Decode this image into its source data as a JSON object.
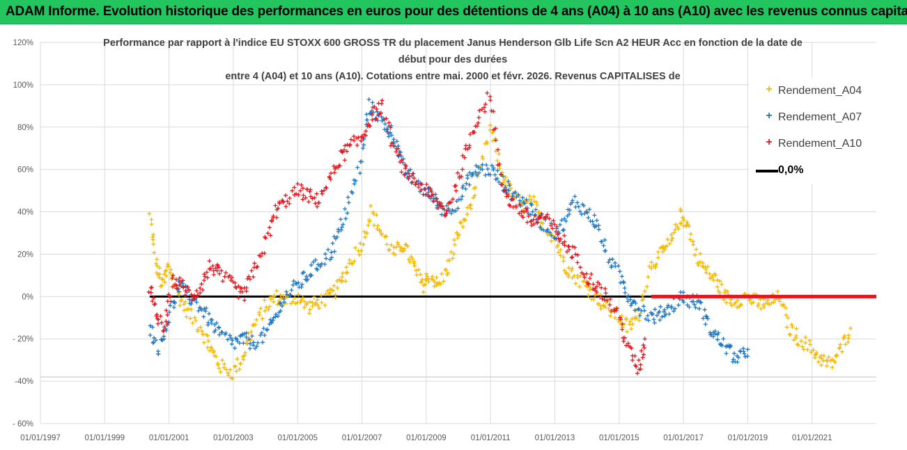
{
  "banner": {
    "text": "ADAM Informe. Evolution historique des performances en euros pour des détentions de 4 ans (A04) à 10 ans (A10) avec les revenus connus capitalisés",
    "color": "#22c55e"
  },
  "chart_data": {
    "type": "scatter",
    "title_lines": [
      "Performance par rapport à l'indice EU STOXX 600 GROSS TR  du placement Janus Henderson Glb Life Scn A2 HEUR Acc en fonction de la date de",
      "début pour des durées",
      "entre 4 (A04) et 10 ans (A10). Cotations entre mai. 2000 et févr. 2026. Revenus CAPITALISES de"
    ],
    "xlabel": "",
    "ylabel": "",
    "x_range": [
      "1997-01-01",
      "2022-12-31"
    ],
    "ylim": [
      -60,
      120
    ],
    "y_ticks": [
      120,
      100,
      80,
      60,
      40,
      20,
      0,
      -20,
      -40,
      -60
    ],
    "y_tick_labels": [
      "120%",
      "100%",
      "80%",
      "60%",
      "40%",
      "20%",
      "0%",
      "- 20%",
      "-40%",
      "- 60%"
    ],
    "x_ticks": [
      1997,
      1999,
      2001,
      2003,
      2005,
      2007,
      2009,
      2011,
      2013,
      2015,
      2017,
      2019,
      2021
    ],
    "x_tick_labels": [
      "01/01/1997",
      "01/01/1999",
      "01/01/2001",
      "01/01/2003",
      "01/01/2005",
      "01/01/2007",
      "01/01/2009",
      "01/01/2011",
      "01/01/2013",
      "01/01/2015",
      "01/01/2017",
      "01/01/2019",
      "01/01/2021"
    ],
    "grid": true,
    "legend_position": "top-right",
    "reference_line": {
      "name": "0,0%",
      "value": 0,
      "color": "#000000"
    },
    "series": [
      {
        "name": "Rendement_A04",
        "color": "#f5b800",
        "x": [
          2000.4,
          2000.6,
          2000.8,
          2001.0,
          2001.3,
          2001.6,
          2002.0,
          2002.3,
          2002.6,
          2003.0,
          2003.3,
          2003.6,
          2004.0,
          2004.3,
          2004.6,
          2005.0,
          2005.3,
          2005.6,
          2006.0,
          2006.3,
          2006.6,
          2007.0,
          2007.3,
          2007.6,
          2008.0,
          2008.3,
          2008.6,
          2008.9,
          2009.1,
          2009.4,
          2009.7,
          2010.0,
          2010.3,
          2010.6,
          2011.0,
          2011.3,
          2011.6,
          2012.0,
          2012.3,
          2012.6,
          2013.0,
          2013.3,
          2013.6,
          2014.0,
          2014.3,
          2014.6,
          2015.0,
          2015.3,
          2015.6,
          2016.0,
          2016.3,
          2016.6,
          2016.9,
          2017.1,
          2017.4,
          2017.7,
          2018.0,
          2018.3,
          2018.6,
          2019.0,
          2019.3,
          2019.6,
          2020.0,
          2020.3,
          2020.6,
          2021.0,
          2021.3,
          2021.6,
          2021.9,
          2022.2
        ],
        "values": [
          38,
          15,
          5,
          15,
          0,
          -8,
          -15,
          -25,
          -33,
          -36,
          -28,
          -15,
          -5,
          0,
          -2,
          0,
          -5,
          -3,
          0,
          5,
          15,
          25,
          40,
          30,
          20,
          25,
          15,
          5,
          10,
          5,
          15,
          30,
          40,
          55,
          80,
          60,
          50,
          42,
          45,
          35,
          28,
          15,
          10,
          5,
          0,
          -5,
          -10,
          -15,
          -8,
          15,
          20,
          25,
          38,
          35,
          20,
          12,
          8,
          0,
          -2,
          0,
          -3,
          -4,
          0,
          -15,
          -20,
          -25,
          -30,
          -32,
          -25,
          -15
        ]
      },
      {
        "name": "Rendement_A07",
        "color": "#1f77c4",
        "x": [
          2000.4,
          2000.7,
          2001.0,
          2001.3,
          2001.6,
          2002.0,
          2002.3,
          2002.6,
          2003.0,
          2003.3,
          2003.6,
          2004.0,
          2004.3,
          2004.6,
          2005.0,
          2005.3,
          2005.6,
          2006.0,
          2006.3,
          2006.6,
          2007.0,
          2007.2,
          2007.5,
          2007.8,
          2008.0,
          2008.3,
          2008.6,
          2009.0,
          2009.3,
          2009.6,
          2010.0,
          2010.3,
          2010.6,
          2011.0,
          2011.3,
          2011.6,
          2012.0,
          2012.3,
          2012.6,
          2013.0,
          2013.3,
          2013.6,
          2014.0,
          2014.3,
          2014.6,
          2015.0,
          2015.3,
          2015.6,
          2016.0,
          2016.3,
          2016.6,
          2016.9,
          2017.2,
          2017.5,
          2017.8,
          2018.1,
          2018.4,
          2018.7,
          2019.0
        ],
        "values": [
          -15,
          -25,
          -10,
          5,
          0,
          -5,
          -12,
          -18,
          -22,
          -20,
          -22,
          -18,
          -10,
          0,
          5,
          10,
          15,
          20,
          30,
          45,
          65,
          90,
          85,
          80,
          75,
          60,
          55,
          50,
          45,
          40,
          45,
          55,
          60,
          60,
          55,
          50,
          45,
          40,
          35,
          30,
          35,
          45,
          40,
          35,
          20,
          10,
          0,
          -5,
          -10,
          -8,
          -5,
          0,
          -2,
          -3,
          -15,
          -20,
          -25,
          -30,
          -25
        ]
      },
      {
        "name": "Rendement_A10",
        "color": "#e8141c",
        "x": [
          2000.4,
          2000.6,
          2000.9,
          2001.1,
          2001.4,
          2001.7,
          2002.0,
          2002.3,
          2002.6,
          2003.0,
          2003.3,
          2003.6,
          2004.0,
          2004.3,
          2004.6,
          2005.0,
          2005.3,
          2005.6,
          2006.0,
          2006.3,
          2006.6,
          2007.0,
          2007.3,
          2007.6,
          2008.0,
          2008.3,
          2008.6,
          2009.0,
          2009.3,
          2009.6,
          2010.0,
          2010.3,
          2010.6,
          2011.0,
          2011.3,
          2011.6,
          2012.0,
          2012.3,
          2012.6,
          2013.0,
          2013.3,
          2013.6,
          2014.0,
          2014.3,
          2014.6,
          2015.0,
          2015.3,
          2015.6,
          2015.8
        ],
        "values": [
          5,
          -10,
          -15,
          8,
          5,
          0,
          5,
          15,
          10,
          5,
          0,
          10,
          25,
          40,
          45,
          50,
          48,
          45,
          55,
          65,
          70,
          75,
          85,
          90,
          70,
          60,
          55,
          50,
          45,
          40,
          55,
          70,
          85,
          95,
          55,
          45,
          40,
          35,
          38,
          32,
          25,
          20,
          10,
          5,
          0,
          -10,
          -25,
          -35,
          -20
        ]
      },
      {
        "name": "Rendement_A10",
        "legend": false,
        "color": "#e8141c",
        "x_start": 2016.0,
        "x_end": 2023.0,
        "value": 0
      }
    ],
    "legend": [
      {
        "label": "Rendement_A04",
        "marker": "+",
        "color": "#f5b800"
      },
      {
        "label": "Rendement_A07",
        "marker": "+",
        "color": "#1f77c4"
      },
      {
        "label": "Rendement_A10",
        "marker": "+",
        "color": "#e8141c"
      },
      {
        "label": "0,0%",
        "marker": "line",
        "color": "#000000"
      }
    ]
  }
}
